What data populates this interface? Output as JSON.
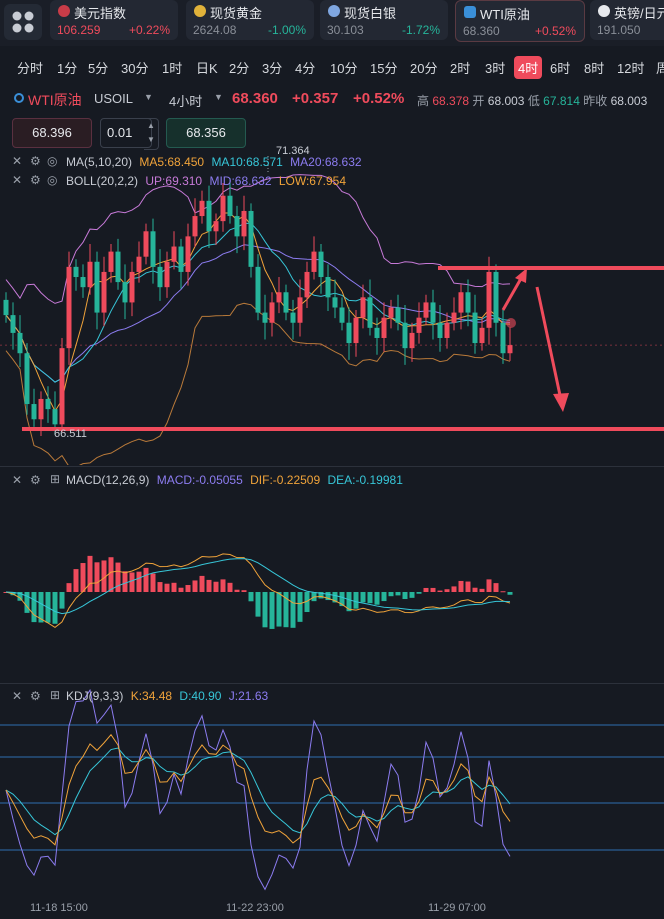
{
  "quotes": [
    {
      "name": "美元指数",
      "price": "106.259",
      "change": "+0.22%",
      "dir": "up",
      "icon_color": "#c83c48"
    },
    {
      "name": "现货黄金",
      "price": "2624.08",
      "change": "-1.00%",
      "dir": "dn",
      "icon_color": "#e0b23a"
    },
    {
      "name": "现货白银",
      "price": "30.103",
      "change": "-1.72%",
      "dir": "dn",
      "icon_color": "#7fa6e0"
    },
    {
      "name": "WTI原油",
      "price": "68.360",
      "change": "+0.52%",
      "dir": "up",
      "icon_color": "#3a8fd8"
    },
    {
      "name": "英镑/日元",
      "price": "191.050",
      "change": "",
      "dir": "up",
      "icon_color": "#e6e8ec"
    }
  ],
  "periods": [
    "分时",
    "1分",
    "5分",
    "30分",
    "1时",
    "日K",
    "2分",
    "3分",
    "4分",
    "10分",
    "15分",
    "20分",
    "2时",
    "3时",
    "4时",
    "6时",
    "8时",
    "12时",
    "周"
  ],
  "active_period": "4时",
  "info": {
    "symbol": "WTI原油",
    "code": "USOIL",
    "interval": "4小时",
    "price": "68.360",
    "change": "+0.357",
    "change_pct": "+0.52%",
    "high_label": "高",
    "high": "68.378",
    "open_label": "开",
    "open": "68.003",
    "low_label": "低",
    "low": "67.814",
    "prev_label": "昨收",
    "prev": "68.003"
  },
  "order": {
    "sell_price": "68.396",
    "qty": "0.01",
    "buy_price": "68.356"
  },
  "ma_legend": {
    "name": "MA(5,10,20)",
    "ma5": "MA5:68.450",
    "ma10": "MA10:68.571",
    "ma20": "MA20:68.632"
  },
  "boll_legend": {
    "name": "BOLL(20,2,2)",
    "up": "UP:69.310",
    "mid": "MID:68.632",
    "low": "LOW:67.954"
  },
  "macd_legend": {
    "name": "MACD(12,26,9)",
    "macd": "MACD:-0.05055",
    "dif": "DIF:-0.22509",
    "dea": "DEA:-0.19981"
  },
  "kdj_legend": {
    "name": "KDJ(9,3,3)",
    "k": "K:34.48",
    "d": "D:40.90",
    "j": "J:21.63"
  },
  "chart_labels": {
    "max_price": "71.364",
    "min_price": "66.511"
  },
  "time_axis": [
    "11-18 15:00",
    "11-22 23:00",
    "11-29 07:00"
  ],
  "colors": {
    "up": "#ef4b5c",
    "down": "#26b49a",
    "ma5": "#f0a33a",
    "ma10": "#37c6d8",
    "ma20": "#8c7cf0",
    "boll_up": "#c77ad8",
    "boll_low": "#b97a3a",
    "accent": "#ef4b5c"
  },
  "chart_data": {
    "type": "candlestick",
    "close": [
      68.95,
      68.6,
      68.2,
      67.2,
      66.9,
      67.3,
      67.1,
      66.8,
      68.3,
      69.9,
      69.7,
      69.5,
      70.0,
      69.0,
      69.8,
      70.2,
      69.6,
      69.2,
      69.8,
      70.1,
      70.6,
      69.9,
      69.5,
      70.0,
      70.3,
      69.8,
      70.5,
      70.9,
      71.2,
      70.6,
      70.8,
      71.3,
      70.9,
      70.5,
      71.0,
      69.9,
      69.0,
      68.8,
      69.2,
      69.4,
      69.0,
      68.8,
      69.3,
      69.8,
      70.2,
      69.7,
      69.3,
      69.1,
      68.8,
      68.4,
      68.9,
      69.3,
      68.7,
      68.5,
      68.9,
      69.1,
      68.8,
      68.3,
      68.6,
      68.9,
      69.2,
      68.8,
      68.5,
      68.8,
      69.0,
      69.4,
      69.0,
      68.4,
      68.7,
      69.8,
      68.8,
      68.2,
      68.36
    ],
    "ylim": [
      66.0,
      72.2
    ]
  }
}
